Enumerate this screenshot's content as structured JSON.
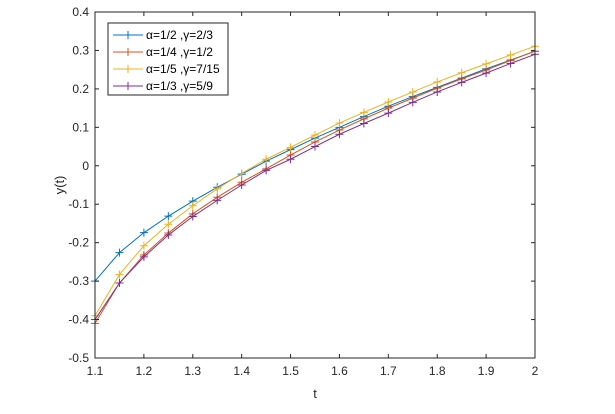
{
  "chart_data": {
    "type": "line",
    "title": "",
    "xlabel": "t",
    "ylabel": "y(t)",
    "xlim": [
      1.1,
      2
    ],
    "ylim": [
      -0.5,
      0.4
    ],
    "xticks": [
      1.1,
      1.2,
      1.3,
      1.4,
      1.5,
      1.6,
      1.7,
      1.8,
      1.9,
      2
    ],
    "xtick_labels": [
      "1.1",
      "1.2",
      "1.3",
      "1.4",
      "1.5",
      "1.6",
      "1.7",
      "1.8",
      "1.9",
      "2"
    ],
    "yticks": [
      -0.5,
      -0.4,
      -0.3,
      -0.2,
      -0.1,
      0,
      0.1,
      0.2,
      0.3,
      0.4
    ],
    "ytick_labels": [
      "-0.5",
      "-0.4",
      "-0.3",
      "-0.2",
      "-0.1",
      "0",
      "0.1",
      "0.2",
      "0.3",
      "0.4"
    ],
    "grid": false,
    "legend_position": "top-left",
    "x": [
      1.1,
      1.15,
      1.2,
      1.25,
      1.3,
      1.35,
      1.4,
      1.45,
      1.5,
      1.55,
      1.6,
      1.65,
      1.7,
      1.75,
      1.8,
      1.85,
      1.9,
      1.95,
      2.0
    ],
    "series": [
      {
        "name": "α=1/2 ,γ=2/3",
        "color": "#0072BD",
        "marker": "+",
        "values": [
          -0.3,
          -0.226,
          -0.174,
          -0.131,
          -0.092,
          -0.056,
          -0.022,
          0.012,
          0.042,
          0.072,
          0.1,
          0.128,
          0.155,
          0.18,
          0.204,
          0.228,
          0.252,
          0.275,
          0.298
        ]
      },
      {
        "name": "α=1/4 ,γ=1/2",
        "color": "#D95319",
        "marker": "+",
        "values": [
          -0.41,
          -0.305,
          -0.232,
          -0.175,
          -0.125,
          -0.082,
          -0.043,
          -0.008,
          0.028,
          0.062,
          0.093,
          0.122,
          0.15,
          0.176,
          0.202,
          0.226,
          0.249,
          0.274,
          0.298
        ]
      },
      {
        "name": "α=1/5 ,γ=7/15",
        "color": "#EDB120",
        "marker": "+",
        "values": [
          -0.39,
          -0.283,
          -0.208,
          -0.152,
          -0.104,
          -0.06,
          -0.02,
          0.017,
          0.048,
          0.08,
          0.111,
          0.139,
          0.166,
          0.192,
          0.218,
          0.242,
          0.265,
          0.288,
          0.311
        ]
      },
      {
        "name": "α=1/3 ,γ=5/9",
        "color": "#7E2F8E",
        "marker": "+",
        "values": [
          -0.4,
          -0.305,
          -0.237,
          -0.18,
          -0.132,
          -0.09,
          -0.05,
          -0.012,
          0.017,
          0.05,
          0.082,
          0.11,
          0.137,
          0.165,
          0.192,
          0.217,
          0.241,
          0.266,
          0.29
        ]
      }
    ]
  }
}
